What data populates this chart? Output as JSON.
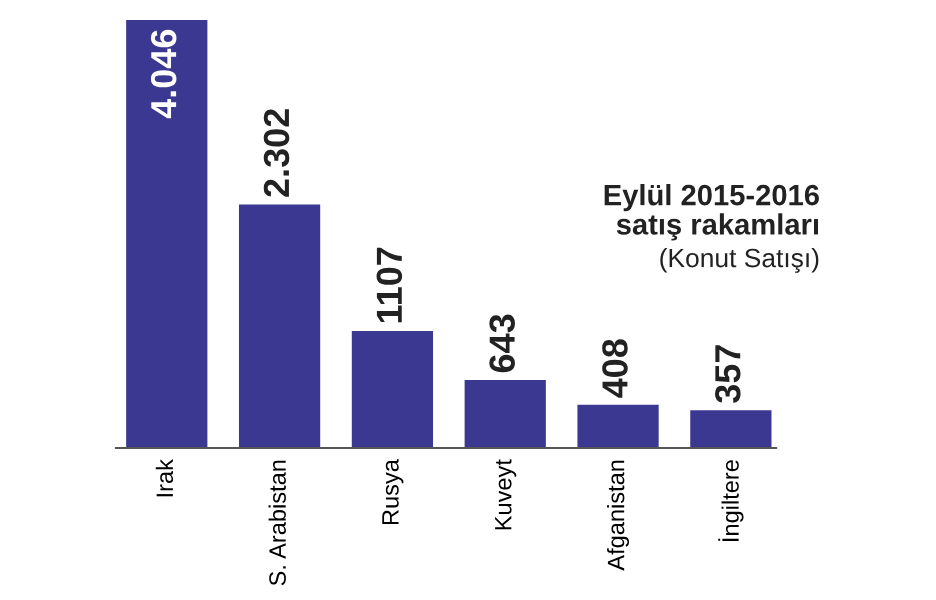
{
  "chart_data": {
    "type": "bar",
    "title": "Eylül 2015-2016\nsatış rakamları",
    "subtitle": "(Konut Satışı)",
    "categories": [
      "Irak",
      "S. Arabistan",
      "Rusya",
      "Kuveyt",
      "Afganistan",
      "İngiltere"
    ],
    "values": [
      4046,
      2302,
      1107,
      643,
      408,
      357
    ],
    "value_labels": [
      "4.046",
      "2.302",
      "1107",
      "643",
      "408",
      "357"
    ],
    "color": "#3b3891"
  }
}
